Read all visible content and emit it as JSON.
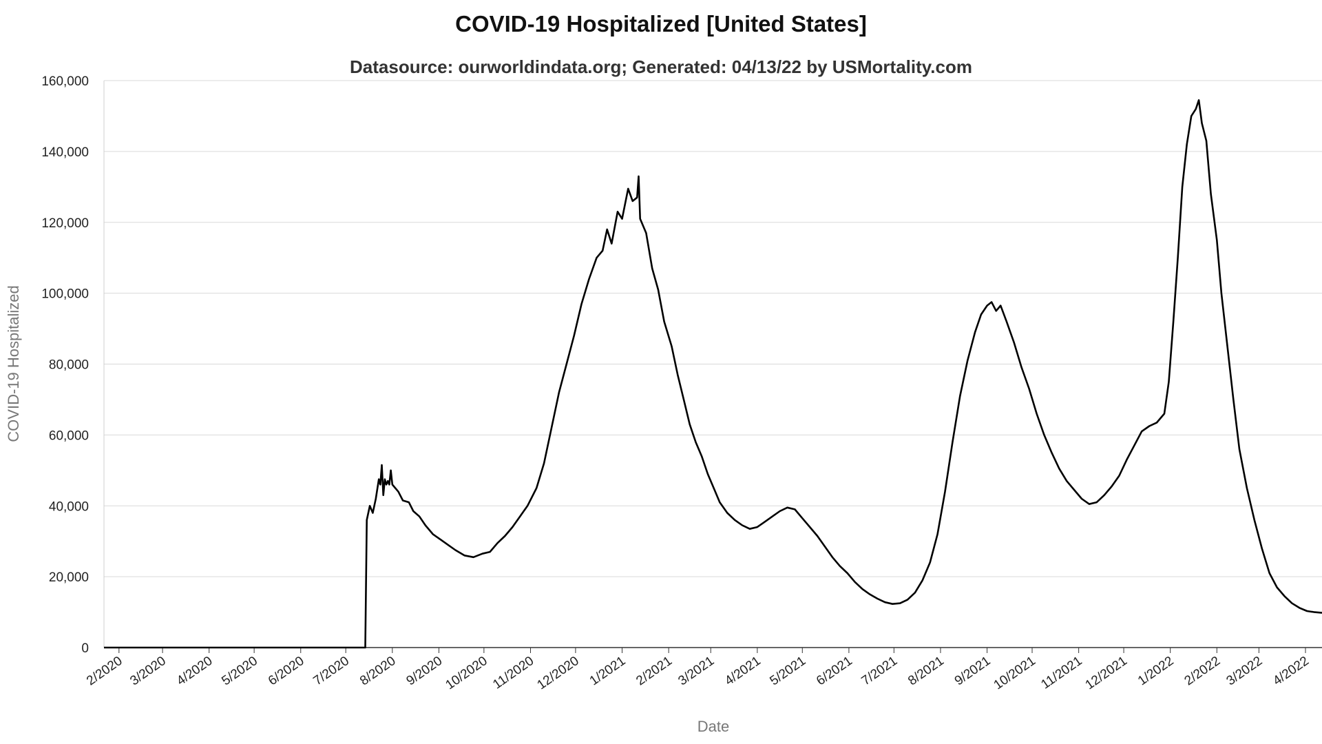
{
  "page": {
    "title": "COVID-19 Hospitalized [United States]",
    "subtitle": "Datasource: ourworldindata.org; Generated: 04/13/22 by USMortality.com"
  },
  "chart_data": {
    "type": "line",
    "title": "COVID-19 Hospitalized [United States]",
    "subtitle": "Datasource: ourworldindata.org; Generated: 04/13/22 by USMortality.com",
    "xlabel": "Date",
    "ylabel": "COVID-19 Hospitalized",
    "ylim": [
      0,
      160000
    ],
    "xlim": [
      "2020-01-22",
      "2022-04-12"
    ],
    "yticks": [
      0,
      20000,
      40000,
      60000,
      80000,
      100000,
      120000,
      140000,
      160000
    ],
    "ytick_labels": [
      "0",
      "20,000",
      "40,000",
      "60,000",
      "80,000",
      "100,000",
      "120,000",
      "140,000",
      "160,000"
    ],
    "xticks": [
      "2020-02-01",
      "2020-03-01",
      "2020-04-01",
      "2020-05-01",
      "2020-06-01",
      "2020-07-01",
      "2020-08-01",
      "2020-09-01",
      "2020-10-01",
      "2020-11-01",
      "2020-12-01",
      "2021-01-01",
      "2021-02-01",
      "2021-03-01",
      "2021-04-01",
      "2021-05-01",
      "2021-06-01",
      "2021-07-01",
      "2021-08-01",
      "2021-09-01",
      "2021-10-01",
      "2021-11-01",
      "2021-12-01",
      "2022-01-01",
      "2022-02-01",
      "2022-03-01",
      "2022-04-01"
    ],
    "xtick_labels": [
      "2/2020",
      "3/2020",
      "4/2020",
      "5/2020",
      "6/2020",
      "7/2020",
      "8/2020",
      "9/2020",
      "10/2020",
      "11/2020",
      "12/2020",
      "1/2021",
      "2/2021",
      "3/2021",
      "4/2021",
      "5/2021",
      "6/2021",
      "7/2021",
      "8/2021",
      "9/2021",
      "10/2021",
      "11/2021",
      "12/2021",
      "1/2022",
      "2/2022",
      "3/2022",
      "4/2022"
    ],
    "grid": true,
    "series": [
      {
        "color": "#000000",
        "points": [
          [
            "2020-01-22",
            0
          ],
          [
            "2020-07-14",
            0
          ],
          [
            "2020-07-15",
            36000
          ],
          [
            "2020-07-17",
            40000
          ],
          [
            "2020-07-19",
            38000
          ],
          [
            "2020-07-21",
            42000
          ],
          [
            "2020-07-23",
            47500
          ],
          [
            "2020-07-24",
            46000
          ],
          [
            "2020-07-25",
            51500
          ],
          [
            "2020-07-26",
            43000
          ],
          [
            "2020-07-27",
            47500
          ],
          [
            "2020-07-28",
            46000
          ],
          [
            "2020-07-29",
            47000
          ],
          [
            "2020-07-30",
            46000
          ],
          [
            "2020-07-31",
            50000
          ],
          [
            "2020-08-01",
            46000
          ],
          [
            "2020-08-05",
            44000
          ],
          [
            "2020-08-08",
            41500
          ],
          [
            "2020-08-12",
            41000
          ],
          [
            "2020-08-15",
            38500
          ],
          [
            "2020-08-19",
            37000
          ],
          [
            "2020-08-23",
            34500
          ],
          [
            "2020-08-28",
            32000
          ],
          [
            "2020-09-02",
            30500
          ],
          [
            "2020-09-07",
            29000
          ],
          [
            "2020-09-12",
            27500
          ],
          [
            "2020-09-18",
            26000
          ],
          [
            "2020-09-24",
            25500
          ],
          [
            "2020-09-30",
            26500
          ],
          [
            "2020-10-05",
            27000
          ],
          [
            "2020-10-10",
            29500
          ],
          [
            "2020-10-15",
            31500
          ],
          [
            "2020-10-20",
            34000
          ],
          [
            "2020-10-25",
            37000
          ],
          [
            "2020-10-30",
            40000
          ],
          [
            "2020-11-05",
            45000
          ],
          [
            "2020-11-10",
            52000
          ],
          [
            "2020-11-15",
            62000
          ],
          [
            "2020-11-20",
            72000
          ],
          [
            "2020-11-25",
            80000
          ],
          [
            "2020-11-30",
            88000
          ],
          [
            "2020-12-05",
            97000
          ],
          [
            "2020-12-10",
            104000
          ],
          [
            "2020-12-15",
            110000
          ],
          [
            "2020-12-19",
            112000
          ],
          [
            "2020-12-22",
            118000
          ],
          [
            "2020-12-25",
            114000
          ],
          [
            "2020-12-29",
            123000
          ],
          [
            "2021-01-01",
            121000
          ],
          [
            "2021-01-05",
            129500
          ],
          [
            "2021-01-08",
            126000
          ],
          [
            "2021-01-11",
            127000
          ],
          [
            "2021-01-12",
            133000
          ],
          [
            "2021-01-13",
            121000
          ],
          [
            "2021-01-17",
            117000
          ],
          [
            "2021-01-21",
            107000
          ],
          [
            "2021-01-25",
            101000
          ],
          [
            "2021-01-29",
            92000
          ],
          [
            "2021-02-03",
            85000
          ],
          [
            "2021-02-07",
            77000
          ],
          [
            "2021-02-11",
            70000
          ],
          [
            "2021-02-15",
            63000
          ],
          [
            "2021-02-19",
            58000
          ],
          [
            "2021-02-23",
            54000
          ],
          [
            "2021-02-27",
            49000
          ],
          [
            "2021-03-03",
            45000
          ],
          [
            "2021-03-07",
            41000
          ],
          [
            "2021-03-12",
            38000
          ],
          [
            "2021-03-17",
            36000
          ],
          [
            "2021-03-22",
            34500
          ],
          [
            "2021-03-27",
            33500
          ],
          [
            "2021-04-01",
            34000
          ],
          [
            "2021-04-06",
            35500
          ],
          [
            "2021-04-11",
            37000
          ],
          [
            "2021-04-16",
            38500
          ],
          [
            "2021-04-21",
            39500
          ],
          [
            "2021-04-26",
            39000
          ],
          [
            "2021-05-01",
            36500
          ],
          [
            "2021-05-06",
            34000
          ],
          [
            "2021-05-11",
            31500
          ],
          [
            "2021-05-16",
            28500
          ],
          [
            "2021-05-21",
            25500
          ],
          [
            "2021-05-26",
            23000
          ],
          [
            "2021-05-31",
            21000
          ],
          [
            "2021-06-05",
            18500
          ],
          [
            "2021-06-10",
            16500
          ],
          [
            "2021-06-15",
            15000
          ],
          [
            "2021-06-20",
            13800
          ],
          [
            "2021-06-25",
            12800
          ],
          [
            "2021-06-30",
            12300
          ],
          [
            "2021-07-05",
            12500
          ],
          [
            "2021-07-10",
            13500
          ],
          [
            "2021-07-15",
            15500
          ],
          [
            "2021-07-20",
            19000
          ],
          [
            "2021-07-25",
            24000
          ],
          [
            "2021-07-30",
            32000
          ],
          [
            "2021-08-04",
            44000
          ],
          [
            "2021-08-09",
            58000
          ],
          [
            "2021-08-14",
            71000
          ],
          [
            "2021-08-19",
            81000
          ],
          [
            "2021-08-24",
            89000
          ],
          [
            "2021-08-28",
            94000
          ],
          [
            "2021-09-01",
            96500
          ],
          [
            "2021-09-04",
            97500
          ],
          [
            "2021-09-07",
            95000
          ],
          [
            "2021-09-10",
            96500
          ],
          [
            "2021-09-14",
            92000
          ],
          [
            "2021-09-19",
            86000
          ],
          [
            "2021-09-24",
            79000
          ],
          [
            "2021-09-29",
            73000
          ],
          [
            "2021-10-04",
            66000
          ],
          [
            "2021-10-09",
            60000
          ],
          [
            "2021-10-14",
            55000
          ],
          [
            "2021-10-19",
            50500
          ],
          [
            "2021-10-24",
            47000
          ],
          [
            "2021-10-29",
            44500
          ],
          [
            "2021-11-03",
            42000
          ],
          [
            "2021-11-08",
            40500
          ],
          [
            "2021-11-13",
            41000
          ],
          [
            "2021-11-18",
            43000
          ],
          [
            "2021-11-23",
            45500
          ],
          [
            "2021-11-28",
            48500
          ],
          [
            "2021-12-03",
            53000
          ],
          [
            "2021-12-08",
            57000
          ],
          [
            "2021-12-13",
            61000
          ],
          [
            "2021-12-18",
            62500
          ],
          [
            "2021-12-23",
            63500
          ],
          [
            "2021-12-28",
            66000
          ],
          [
            "2021-12-31",
            75000
          ],
          [
            "2022-01-03",
            92000
          ],
          [
            "2022-01-06",
            110000
          ],
          [
            "2022-01-09",
            130000
          ],
          [
            "2022-01-12",
            142000
          ],
          [
            "2022-01-15",
            150000
          ],
          [
            "2022-01-18",
            152000
          ],
          [
            "2022-01-20",
            154500
          ],
          [
            "2022-01-22",
            148000
          ],
          [
            "2022-01-25",
            143000
          ],
          [
            "2022-01-28",
            128000
          ],
          [
            "2022-02-01",
            115000
          ],
          [
            "2022-02-04",
            100000
          ],
          [
            "2022-02-08",
            85000
          ],
          [
            "2022-02-12",
            70000
          ],
          [
            "2022-02-16",
            56000
          ],
          [
            "2022-02-21",
            45000
          ],
          [
            "2022-02-26",
            36000
          ],
          [
            "2022-03-03",
            28000
          ],
          [
            "2022-03-08",
            21000
          ],
          [
            "2022-03-13",
            17000
          ],
          [
            "2022-03-18",
            14500
          ],
          [
            "2022-03-23",
            12500
          ],
          [
            "2022-03-28",
            11200
          ],
          [
            "2022-04-02",
            10300
          ],
          [
            "2022-04-07",
            10000
          ],
          [
            "2022-04-12",
            9800
          ]
        ]
      }
    ]
  }
}
